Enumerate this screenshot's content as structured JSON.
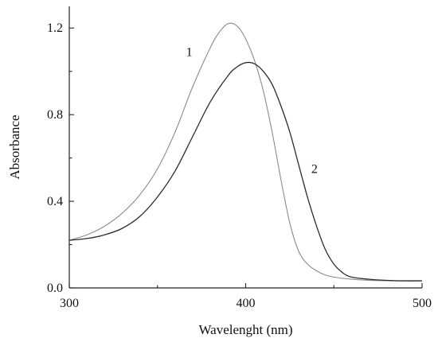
{
  "chart_data": {
    "type": "line",
    "title": "",
    "xlabel": "Wavelenght (nm)",
    "ylabel": "Absorbance",
    "xlim": [
      300,
      500
    ],
    "ylim": [
      0.0,
      1.3
    ],
    "x_ticks": [
      300,
      400,
      500
    ],
    "x_tick_labels": [
      "300",
      "400",
      "500"
    ],
    "y_ticks": [
      0.0,
      0.4,
      0.8,
      1.2
    ],
    "y_tick_labels": [
      "0.0",
      "0.4",
      "0.8",
      "1.2"
    ],
    "grid": false,
    "legend": "none",
    "series": [
      {
        "name": "1",
        "color": "#8a8a8a",
        "x": [
          300,
          310,
          320,
          330,
          340,
          350,
          360,
          370,
          380,
          385,
          390,
          395,
          400,
          405,
          410,
          415,
          420,
          425,
          430,
          435,
          440,
          445,
          450,
          460,
          470,
          480,
          490,
          500
        ],
        "y": [
          0.22,
          0.245,
          0.285,
          0.345,
          0.43,
          0.55,
          0.72,
          0.93,
          1.11,
          1.18,
          1.22,
          1.21,
          1.15,
          1.05,
          0.91,
          0.72,
          0.5,
          0.3,
          0.17,
          0.11,
          0.08,
          0.06,
          0.05,
          0.04,
          0.035,
          0.033,
          0.032,
          0.032
        ]
      },
      {
        "name": "2",
        "color": "#2a2a3a",
        "x": [
          300,
          310,
          320,
          330,
          340,
          350,
          360,
          370,
          380,
          390,
          395,
          400,
          405,
          410,
          415,
          420,
          425,
          430,
          435,
          440,
          445,
          450,
          455,
          460,
          470,
          480,
          490,
          500
        ],
        "y": [
          0.22,
          0.228,
          0.245,
          0.275,
          0.33,
          0.42,
          0.54,
          0.7,
          0.86,
          0.98,
          1.02,
          1.04,
          1.035,
          1.0,
          0.94,
          0.84,
          0.72,
          0.57,
          0.42,
          0.29,
          0.18,
          0.11,
          0.07,
          0.05,
          0.04,
          0.035,
          0.033,
          0.033
        ]
      }
    ],
    "annotations": [
      {
        "text": "1",
        "x": 368,
        "y": 1.07,
        "series": "1"
      },
      {
        "text": "2",
        "x": 439,
        "y": 0.53,
        "series": "2"
      }
    ]
  }
}
